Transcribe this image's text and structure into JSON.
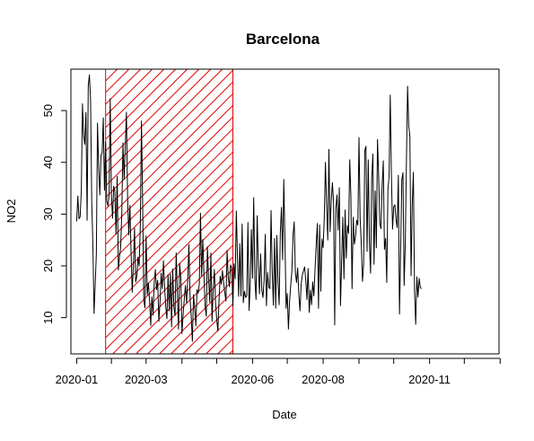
{
  "chart_data": {
    "type": "line",
    "title": "Barcelona",
    "xlabel": "Date",
    "ylabel": "NO2",
    "xlim": [
      -5,
      365
    ],
    "ylim": [
      3,
      58
    ],
    "grid": false,
    "x_ticks": [
      {
        "label": "2020-01",
        "day": 0
      },
      {
        "label": "2020-03",
        "day": 60
      },
      {
        "label": "2020-06",
        "day": 152
      },
      {
        "label": "2020-08",
        "day": 213
      },
      {
        "label": "2020-11",
        "day": 305
      }
    ],
    "x_minor_ticks_days": [
      30,
      91,
      121,
      182,
      244,
      274,
      335,
      366
    ],
    "y_ticks": [
      10,
      20,
      30,
      40,
      50
    ],
    "highlight_region": {
      "label": "hatched period",
      "start_day": 25,
      "end_day": 135,
      "color": "#dd0000"
    },
    "series": [
      {
        "name": "NO2",
        "color": "#000000",
        "start_day": 0,
        "values": [
          28.6,
          33.5,
          29.1,
          29.5,
          34.5,
          51.3,
          45.1,
          43.5,
          49.6,
          28.8,
          54.8,
          56.9,
          52.0,
          32.4,
          24.1,
          10.8,
          16.4,
          22.4,
          47.6,
          39.1,
          33.7,
          41.4,
          41.8,
          48.6,
          34.6,
          44.0,
          32.5,
          31.6,
          33.5,
          52.3,
          33.7,
          29.2,
          35.4,
          34.4,
          26.1,
          37.3,
          19.2,
          21.8,
          23.6,
          30.2,
          43.8,
          36.7,
          43.0,
          49.7,
          33.2,
          26.0,
          31.7,
          22.6,
          14.9,
          20.1,
          27.3,
          16.9,
          18.0,
          21.7,
          20.0,
          27.8,
          48.0,
          32.5,
          13.3,
          11.9,
          25.8,
          14.4,
          16.7,
          13.3,
          8.5,
          14.0,
          10.5,
          16.6,
          19.3,
          15.4,
          17.2,
          9.3,
          12.9,
          18.6,
          15.6,
          21.0,
          15.9,
          12.1,
          9.8,
          18.3,
          11.3,
          18.4,
          8.2,
          19.4,
          12.0,
          10.4,
          22.5,
          14.7,
          7.8,
          20.5,
          17.7,
          6.9,
          10.6,
          13.6,
          16.2,
          12.8,
          17.3,
          24.1,
          13.9,
          10.1,
          5.4,
          14.4,
          11.9,
          8.4,
          15.4,
          14.7,
          16.5,
          30.2,
          18.0,
          25.1,
          18.3,
          12.1,
          10.3,
          23.7,
          17.6,
          13.0,
          22.5,
          9.3,
          15.4,
          19.3,
          13.0,
          9.8,
          7.4,
          13.1,
          18.0,
          16.5,
          19.1,
          16.7,
          14.9,
          13.2,
          23.0,
          17.8,
          16.0,
          20.2,
          19.6,
          12.2,
          20.4,
          17.5,
          30.6,
          21.3,
          14.1,
          24.3,
          14.2,
          28.1,
          12.9,
          15.1,
          13.9,
          14.2,
          28.4,
          11.4,
          16.5,
          27.0,
          17.6,
          33.2,
          17.4,
          13.5,
          29.7,
          20.2,
          14.6,
          22.3,
          15.3,
          13.9,
          17.3,
          26.1,
          12.3,
          18.7,
          15.9,
          15.6,
          30.7,
          19.0,
          12.4,
          25.3,
          11.8,
          25.9,
          16.8,
          12.5,
          26.4,
          31.3,
          21.2,
          36.7,
          24.8,
          11.8,
          14.7,
          7.8,
          13.1,
          16.3,
          19.0,
          25.9,
          28.5,
          18.8,
          16.8,
          19.6,
          14.6,
          11.3,
          16.4,
          18.2,
          19.0,
          19.8,
          17.1,
          13.5,
          19.5,
          11.0,
          15.3,
          12.5,
          16.9,
          14.2,
          19.3,
          24.1,
          28.2,
          11.8,
          27.9,
          15.1,
          25.2,
          23.5,
          29.3,
          40.0,
          31.6,
          25.0,
          42.5,
          26.6,
          32.4,
          36.1,
          32.3,
          8.6,
          31.2,
          33.7,
          26.9,
          35.1,
          12.3,
          20.8,
          29.4,
          17.5,
          30.8,
          21.5,
          27.8,
          26.3,
          40.5,
          33.5,
          15.6,
          29.4,
          24.2,
          25.7,
          28.8,
          27.9,
          44.8,
          29.1,
          24.1,
          17.0,
          20.3,
          42.3,
          43.1,
          22.8,
          40.5,
          24.7,
          18.6,
          37.1,
          41.6,
          20.3,
          34.5,
          23.5,
          44.4,
          37.3,
          28.1,
          27.2,
          35.4,
          40.3,
          23.2,
          25.3,
          16.8,
          34.8,
          37.2,
          53.0,
          37.7,
          27.1,
          31.4,
          31.8,
          29.0,
          27.4,
          37.5,
          10.7,
          23.1,
          36.6,
          38.0,
          16.2,
          24.2,
          40.3,
          54.7,
          47.0,
          45.0,
          18.1,
          31.8,
          38.1,
          15.2,
          8.7,
          17.9,
          14.0,
          17.6,
          15.8,
          15.6
        ]
      }
    ]
  }
}
